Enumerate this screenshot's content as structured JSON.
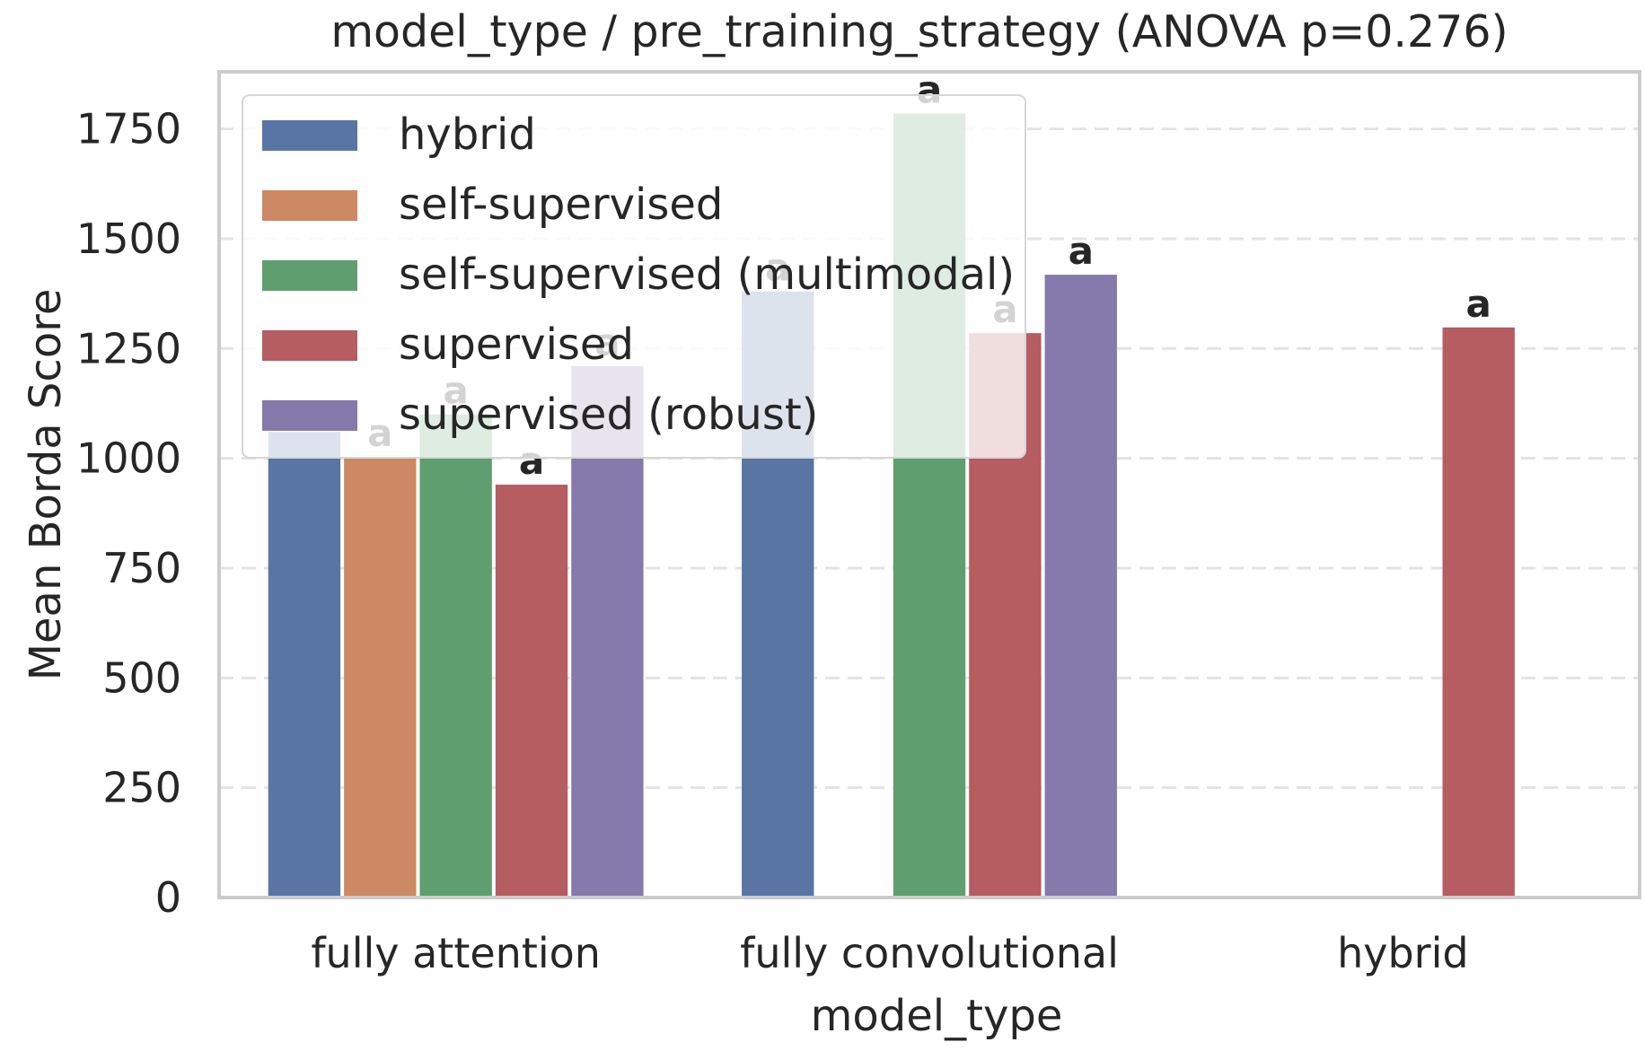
{
  "chart_data": {
    "type": "bar",
    "title": "model_type / pre_training_strategy  (ANOVA p=0.276)",
    "xlabel": "model_type",
    "ylabel": "Mean Borda Score",
    "ylim": [
      0,
      1880
    ],
    "yticks": [
      0,
      250,
      500,
      750,
      1000,
      1250,
      1500,
      1750
    ],
    "grid": "horizontal dashed",
    "legend_position": "upper-left",
    "categories": [
      "fully attention",
      "fully convolutional",
      "hybrid"
    ],
    "series": [
      {
        "name": "hybrid",
        "color": "#5875a4",
        "values": [
          1060,
          1380,
          null
        ],
        "labels": [
          "a",
          "a",
          null
        ]
      },
      {
        "name": "self-supervised",
        "color": "#cc8963",
        "values": [
          1003,
          null,
          null
        ],
        "labels": [
          "a",
          null,
          null
        ]
      },
      {
        "name": "self-supervised (multimodal)",
        "color": "#5f9e6e",
        "values": [
          1100,
          1785,
          null
        ],
        "labels": [
          "a",
          "a",
          null
        ]
      },
      {
        "name": "supervised",
        "color": "#b55d60",
        "values": [
          940,
          1285,
          1298
        ],
        "labels": [
          "a",
          "a",
          "a"
        ]
      },
      {
        "name": "supervised (robust)",
        "color": "#857aab",
        "values": [
          1210,
          1418,
          null
        ],
        "labels": [
          "a",
          "a",
          null
        ]
      }
    ]
  }
}
